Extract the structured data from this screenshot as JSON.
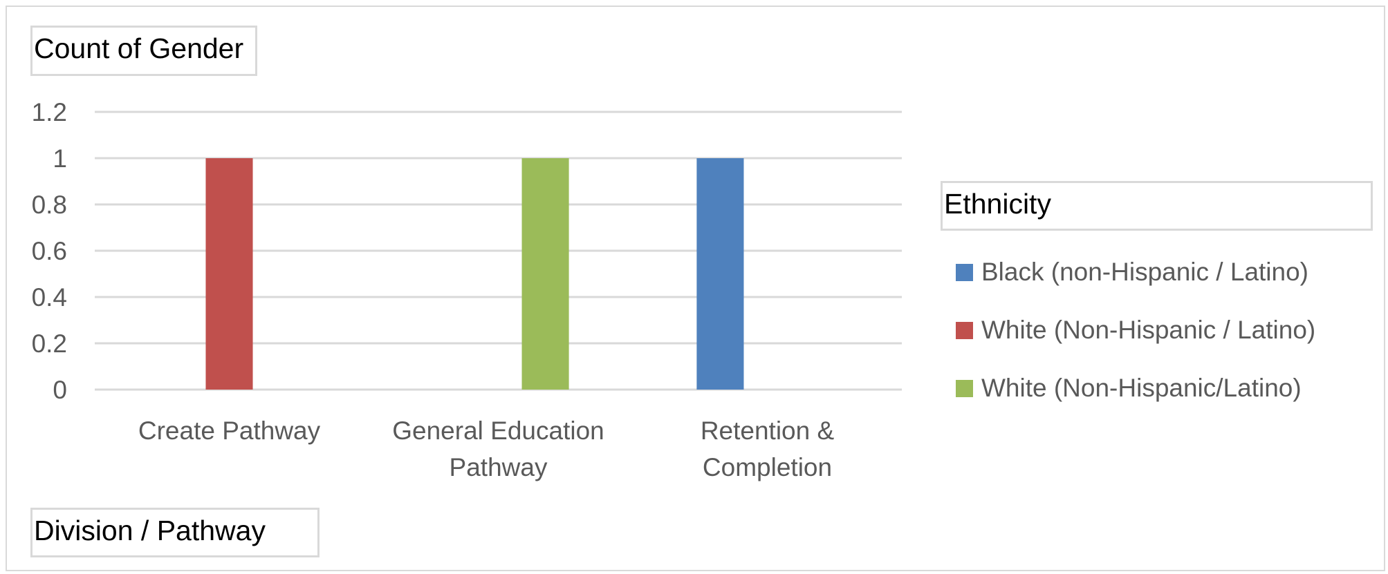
{
  "chart_data": {
    "type": "bar",
    "title": "",
    "value_field_label": "Count of Gender",
    "axis_field_label": "Division / Pathway",
    "legend_title": "Ethnicity",
    "legend_position": "right",
    "grid": true,
    "ylim": [
      0,
      1.2
    ],
    "yticks": [
      "0",
      "0.2",
      "0.4",
      "0.6",
      "0.8",
      "1",
      "1.2"
    ],
    "categories": [
      [
        "Create Pathway"
      ],
      [
        "General Education",
        "Pathway"
      ],
      [
        "Retention &",
        "Completion"
      ]
    ],
    "series": [
      {
        "name": "Black (non-Hispanic / Latino)",
        "color": "#4f81bd",
        "values": [
          null,
          null,
          1
        ]
      },
      {
        "name": "White (Non-Hispanic / Latino)",
        "color": "#c0504d",
        "values": [
          1,
          null,
          null
        ]
      },
      {
        "name": "White (Non-Hispanic/Latino)",
        "color": "#9bbb59",
        "values": [
          null,
          1,
          null
        ]
      }
    ]
  }
}
